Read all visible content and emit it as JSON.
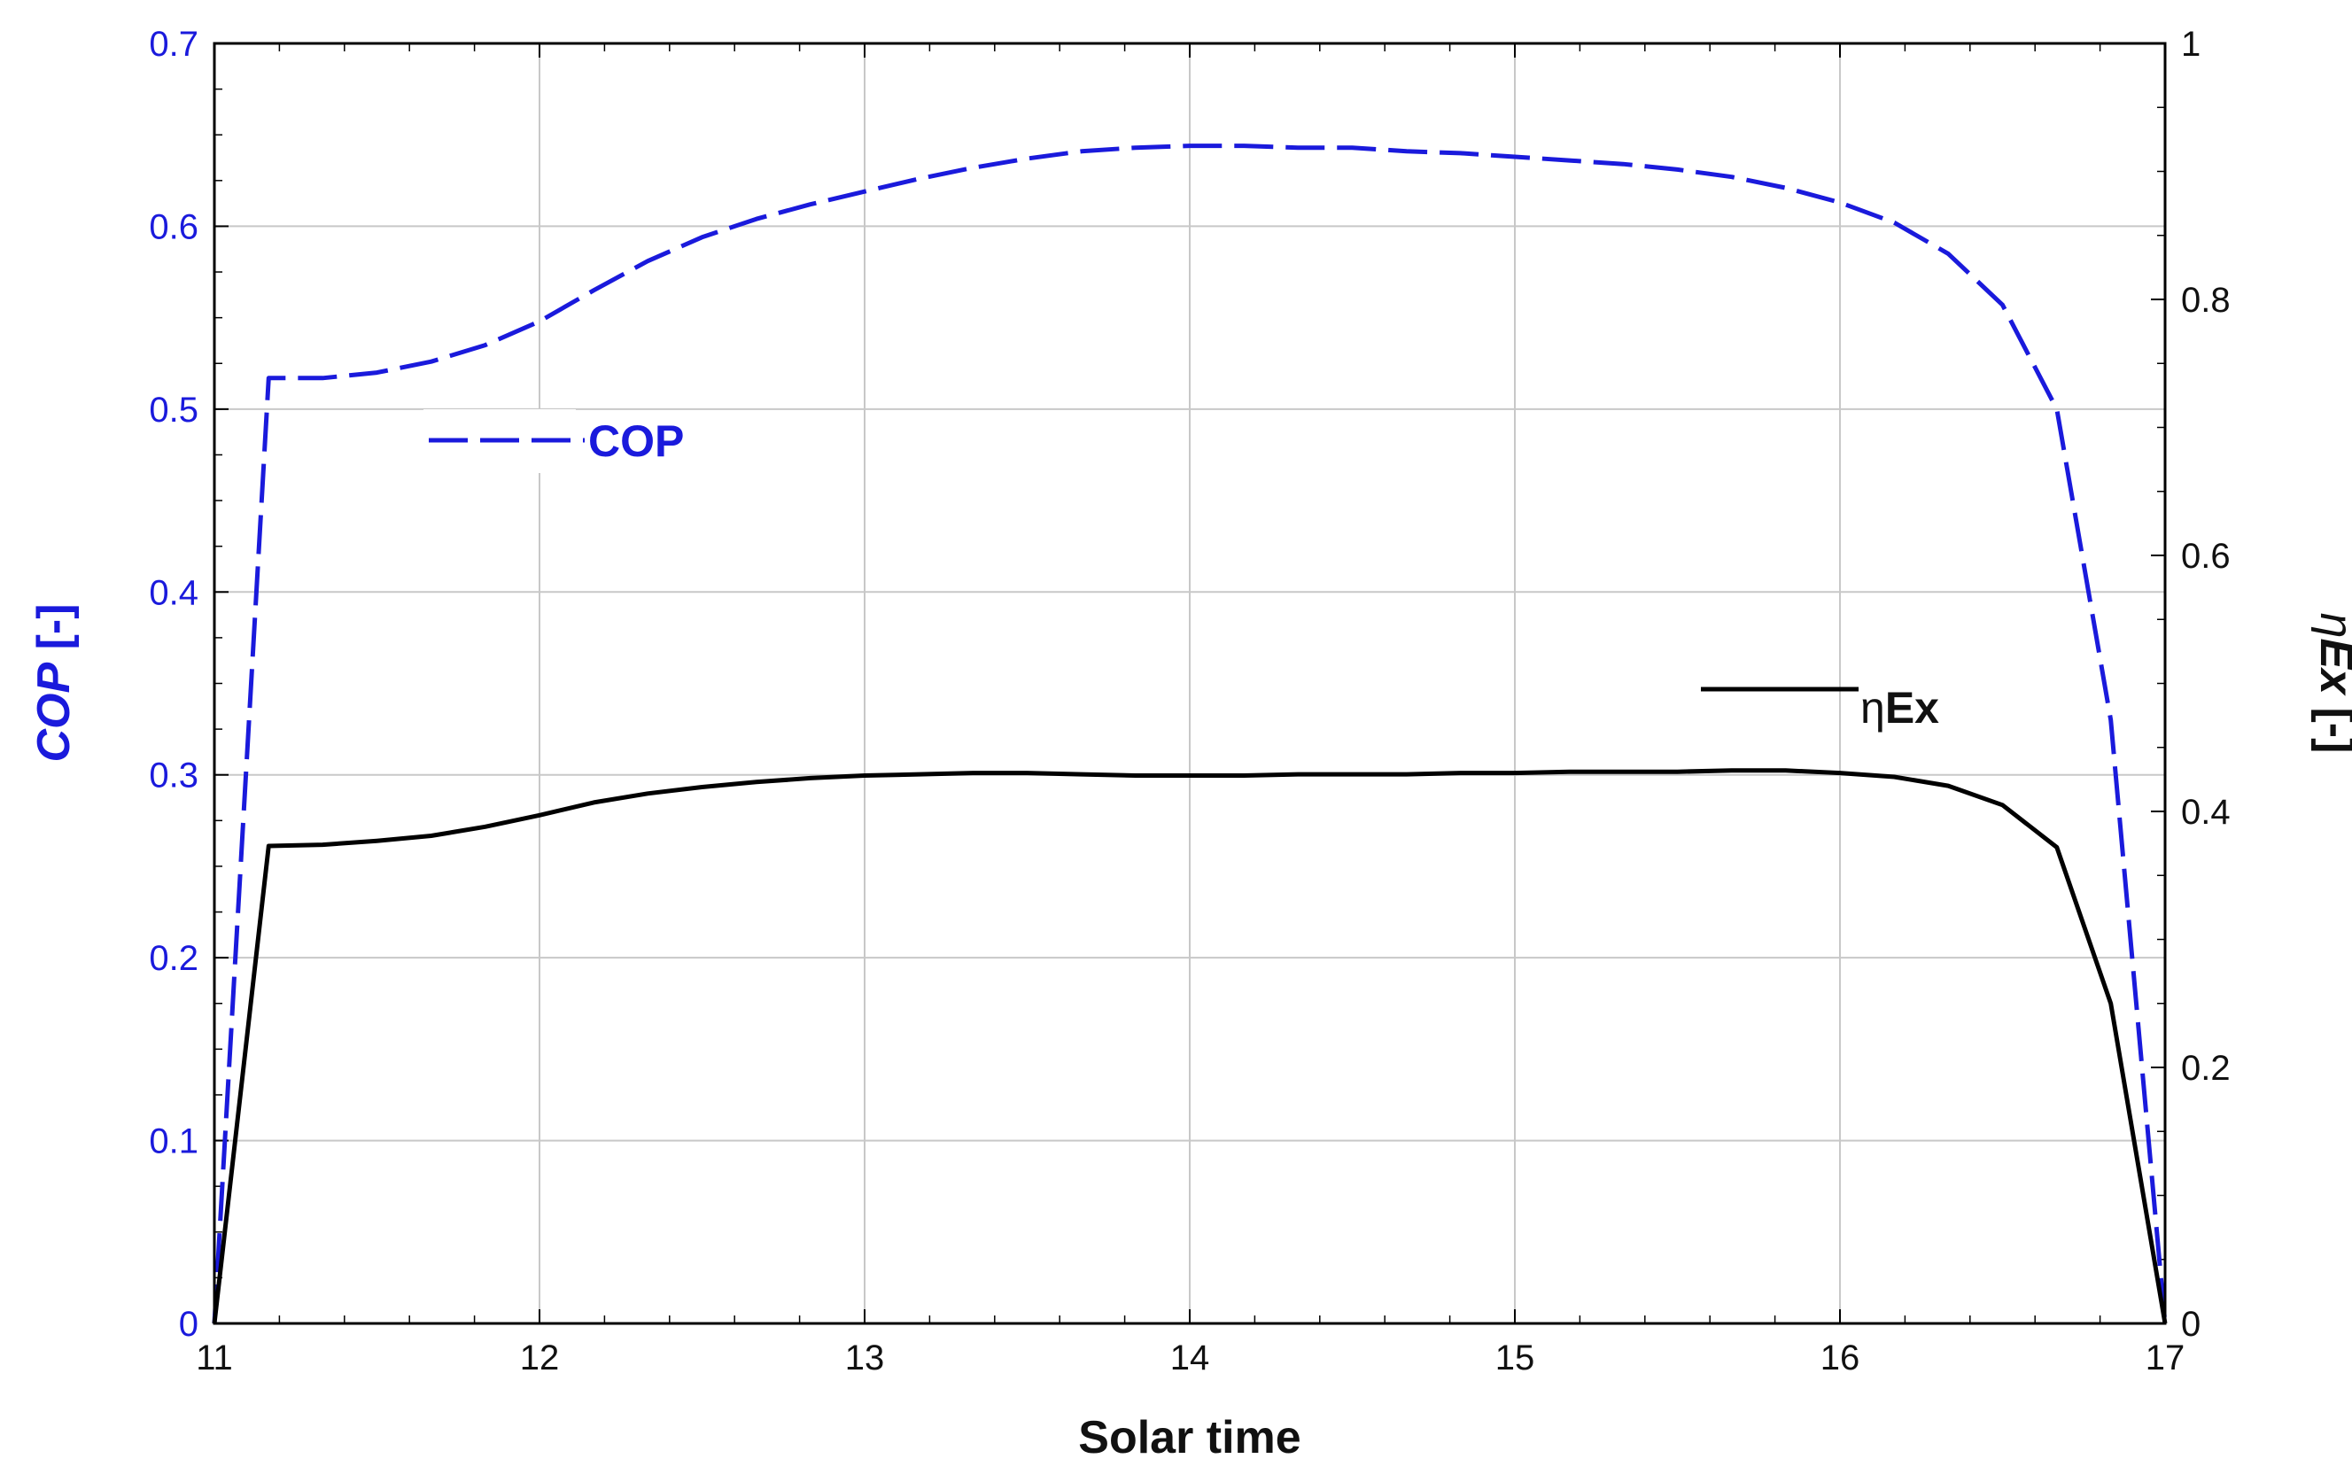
{
  "chart_data": {
    "type": "line",
    "title": "",
    "xlabel": "Solar time",
    "ylabel_left": {
      "main": "COP",
      "unit": "[-]"
    },
    "ylabel_right": {
      "sym": "η",
      "sub": "Ex",
      "unit": "[-]"
    },
    "xlim": [
      11,
      17
    ],
    "ylim_left": [
      0,
      0.7
    ],
    "ylim_right": [
      0,
      1
    ],
    "x_ticks": [
      "11",
      "12",
      "13",
      "14",
      "15",
      "16",
      "17"
    ],
    "y_left_ticks": [
      "0",
      "0.1",
      "0.2",
      "0.3",
      "0.4",
      "0.5",
      "0.6",
      "0.7"
    ],
    "y_right_ticks": [
      "0",
      "0.2",
      "0.4",
      "0.6",
      "0.8",
      "1"
    ],
    "grid": true,
    "colors": {
      "cop": "#1a1adc",
      "eta": "#000000",
      "grid": "#c8c8c8",
      "axis": "#000000"
    },
    "series": [
      {
        "name": "COP",
        "axis": "left",
        "style": "dashed",
        "legend_label": "COP",
        "x": [
          11.0,
          11.167,
          11.333,
          11.5,
          11.667,
          11.833,
          12.0,
          12.167,
          12.333,
          12.5,
          12.667,
          12.833,
          13.0,
          13.167,
          13.333,
          13.5,
          13.667,
          13.833,
          14.0,
          14.167,
          14.333,
          14.5,
          14.667,
          14.833,
          15.0,
          15.167,
          15.333,
          15.5,
          15.667,
          15.833,
          16.0,
          16.167,
          16.333,
          16.5,
          16.667,
          16.833,
          17.0
        ],
        "values": [
          0.0,
          0.517,
          0.517,
          0.52,
          0.526,
          0.535,
          0.548,
          0.565,
          0.581,
          0.594,
          0.604,
          0.612,
          0.619,
          0.626,
          0.632,
          0.637,
          0.641,
          0.643,
          0.644,
          0.644,
          0.643,
          0.643,
          0.641,
          0.64,
          0.638,
          0.636,
          0.634,
          0.631,
          0.627,
          0.621,
          0.613,
          0.602,
          0.585,
          0.557,
          0.5,
          0.33,
          0.0
        ]
      },
      {
        "name": "ηEx",
        "axis": "right",
        "style": "solid",
        "legend_label": {
          "sym": "η",
          "sub": "Ex"
        },
        "x": [
          11.0,
          11.167,
          11.333,
          11.5,
          11.667,
          11.833,
          12.0,
          12.167,
          12.333,
          12.5,
          12.667,
          12.833,
          13.0,
          13.167,
          13.333,
          13.5,
          13.667,
          13.833,
          14.0,
          14.167,
          14.333,
          14.5,
          14.667,
          14.833,
          15.0,
          15.167,
          15.333,
          15.5,
          15.667,
          15.833,
          16.0,
          16.167,
          16.333,
          16.5,
          16.667,
          16.833,
          17.0
        ],
        "values": [
          0.0,
          0.373,
          0.374,
          0.377,
          0.381,
          0.388,
          0.397,
          0.407,
          0.414,
          0.419,
          0.423,
          0.426,
          0.428,
          0.429,
          0.43,
          0.43,
          0.429,
          0.428,
          0.428,
          0.428,
          0.429,
          0.429,
          0.429,
          0.43,
          0.43,
          0.431,
          0.431,
          0.431,
          0.432,
          0.432,
          0.43,
          0.427,
          0.42,
          0.405,
          0.372,
          0.25,
          0.0
        ]
      }
    ]
  }
}
